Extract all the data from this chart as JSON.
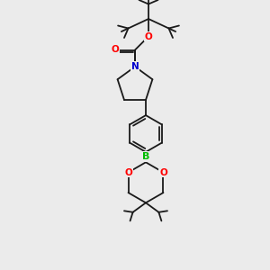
{
  "bg_color": "#ebebeb",
  "bond_color": "#1a1a1a",
  "atom_colors": {
    "O": "#ff0000",
    "N": "#0000cd",
    "B": "#00bb00",
    "C": "#1a1a1a"
  },
  "bond_width": 1.3,
  "font_size_atoms": 7.5
}
